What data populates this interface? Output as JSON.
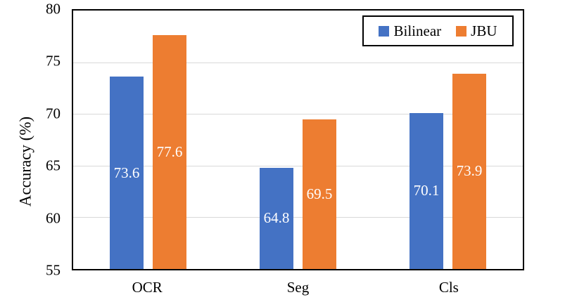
{
  "chart_data": {
    "type": "bar",
    "title": "",
    "categories": [
      "OCR",
      "Seg",
      "Cls"
    ],
    "series": [
      {
        "name": "Bilinear",
        "color": "#4472C4",
        "values": [
          73.6,
          64.8,
          70.1
        ]
      },
      {
        "name": "JBU",
        "color": "#ED7D31",
        "values": [
          77.6,
          69.5,
          73.9
        ]
      }
    ],
    "bar_value_labels": [
      "73.6",
      "77.6",
      "64.8",
      "69.5",
      "70.1",
      "73.9"
    ],
    "bar_label_position": "center-inside",
    "bar_label_color": "#FFFFFF",
    "xlabel": "",
    "ylabel": "Accuracy (%)",
    "ylim": [
      55,
      80
    ],
    "yticks": [
      55,
      60,
      65,
      70,
      75,
      80
    ],
    "grid": "horizontal",
    "gridline_color": "#D9D9D9",
    "axis_color": "#000000",
    "legend_position": "top-right-inside",
    "legend_border_color": "#000000"
  }
}
